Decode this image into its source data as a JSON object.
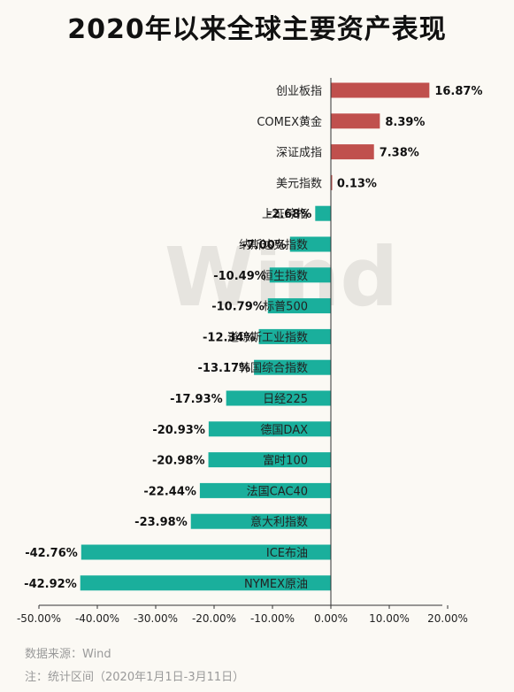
{
  "title": "2020年以来全球主要资产表现",
  "watermark": "Wind",
  "footnotes": {
    "source": "数据来源：Wind",
    "note": "注：统计区间（2020年1月1日-3月11日）"
  },
  "colors": {
    "positive": "#c0504d",
    "negative": "#1aaf9c",
    "axis": "#333333",
    "watermark": "#e6e4df"
  },
  "chart_data": {
    "type": "bar",
    "orientation": "horizontal",
    "categories": [
      "创业板指",
      "COMEX黄金",
      "深证成指",
      "美元指数",
      "上证综指",
      "纳斯达克指数",
      "恒生指数",
      "标普500",
      "道琼斯工业指数",
      "韩国综合指数",
      "日经225",
      "德国DAX",
      "富时100",
      "法国CAC40",
      "意大利指数",
      "ICE布油",
      "NYMEX原油"
    ],
    "values": [
      16.87,
      8.39,
      7.38,
      0.13,
      -2.68,
      -7.0,
      -10.49,
      -10.79,
      -12.34,
      -13.17,
      -17.93,
      -20.93,
      -20.98,
      -22.44,
      -23.98,
      -42.76,
      -42.92
    ],
    "value_labels": [
      "16.87%",
      "8.39%",
      "7.38%",
      "0.13%",
      "-2.68%",
      "-7.00%",
      "-10.49%",
      "-10.79%",
      "-12.34%",
      "-13.17%",
      "-17.93%",
      "-20.93%",
      "-20.98%",
      "-22.44%",
      "-23.98%",
      "-42.76%",
      "-42.92%"
    ],
    "xlim": [
      -50,
      20
    ],
    "xticks": [
      -50,
      -40,
      -30,
      -20,
      -10,
      0,
      10,
      20
    ],
    "xtick_labels": [
      "-50.00%",
      "-40.00%",
      "-30.00%",
      "-20.00%",
      "-10.00%",
      "0.00%",
      "10.00%",
      "20.00%"
    ],
    "grid": false,
    "legend": "none"
  }
}
